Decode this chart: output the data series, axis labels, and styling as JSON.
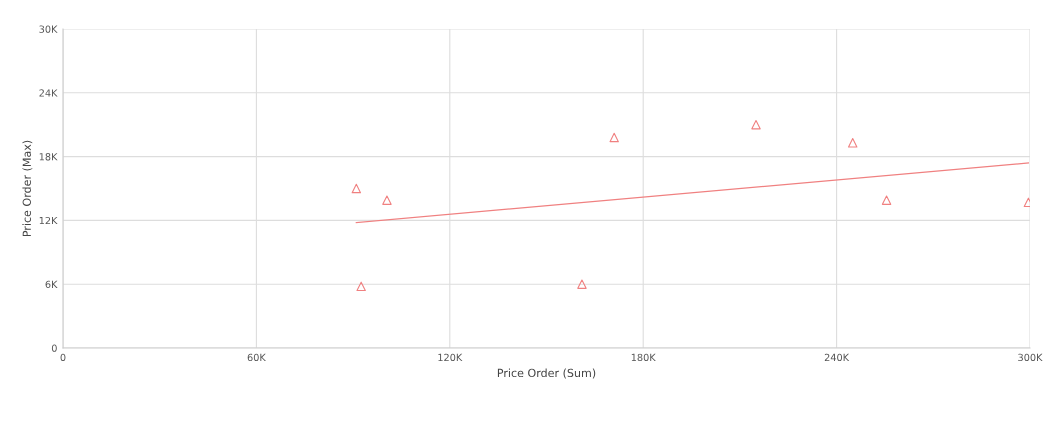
{
  "chart_data": {
    "type": "scatter",
    "xlabel": "Price Order (Sum)",
    "ylabel": "Price Order (Max)",
    "xlim": [
      0,
      300000
    ],
    "ylim": [
      0,
      30000
    ],
    "xticks": [
      {
        "value": 0,
        "label": "0"
      },
      {
        "value": 60000,
        "label": "60K"
      },
      {
        "value": 120000,
        "label": "120K"
      },
      {
        "value": 180000,
        "label": "180K"
      },
      {
        "value": 240000,
        "label": "240K"
      },
      {
        "value": 300000,
        "label": "300K"
      }
    ],
    "yticks": [
      {
        "value": 0,
        "label": "0"
      },
      {
        "value": 6000,
        "label": "6K"
      },
      {
        "value": 12000,
        "label": "12K"
      },
      {
        "value": 18000,
        "label": "18K"
      },
      {
        "value": 24000,
        "label": "24K"
      },
      {
        "value": 30000,
        "label": "30K"
      }
    ],
    "grid": true,
    "series": [
      {
        "marker": "triangle",
        "color": "#f08080",
        "x": [
          91000,
          92500,
          100500,
          161000,
          171000,
          215000,
          245000,
          255500,
          299500
        ],
        "values": [
          15000,
          5800,
          13900,
          6000,
          19800,
          21000,
          19300,
          13900,
          13700
        ]
      },
      {
        "type": "line",
        "marker": "none",
        "color": "#f08080",
        "x": [
          91000,
          299500
        ],
        "values": [
          11800,
          17400
        ]
      }
    ]
  }
}
